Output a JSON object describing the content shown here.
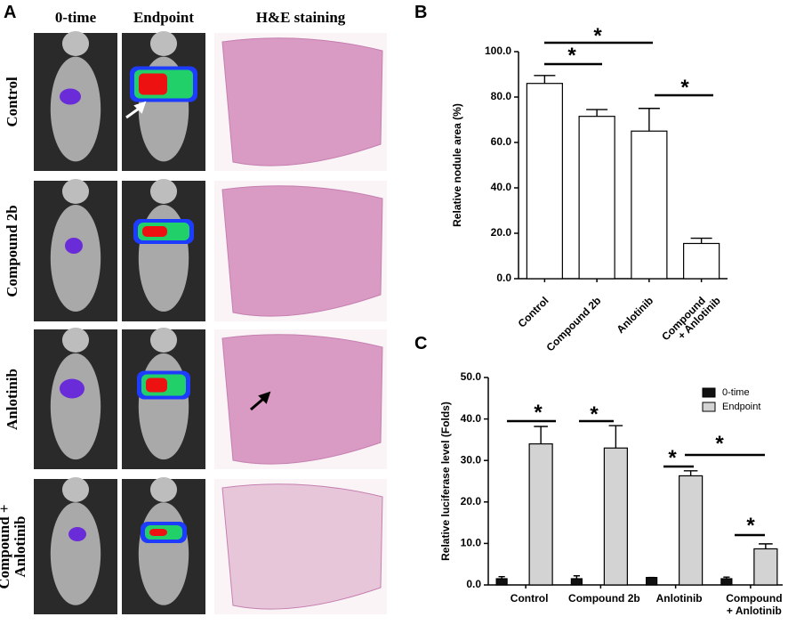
{
  "panel_a": {
    "label": "A",
    "columns": [
      "0-time",
      "Endpoint",
      "H&E staining"
    ],
    "rows": [
      [
        "Control"
      ],
      [
        "Compound 2b"
      ],
      [
        "Anlotinib"
      ],
      [
        "Compound +",
        "Anlotinib"
      ]
    ]
  },
  "chart_data": [
    {
      "type": "bar",
      "panel_label": "B",
      "y_label": "Relative nodule area (%)",
      "categories": [
        [
          "Control"
        ],
        [
          "Compound 2b"
        ],
        [
          "Anlotinib"
        ],
        [
          "Compound",
          "+ Anlotinib"
        ]
      ],
      "series": [
        {
          "color": "#ffffff",
          "values": [
            86,
            71.5,
            65,
            15.5
          ],
          "errors": [
            3.5,
            3,
            10,
            2.3
          ]
        }
      ],
      "ylim": [
        0,
        100
      ],
      "yticks": [
        {
          "value": 0,
          "label": "0.0"
        },
        {
          "value": 20,
          "label": "20.0"
        },
        {
          "value": 40,
          "label": "40.0"
        },
        {
          "value": 60,
          "label": "60.0"
        },
        {
          "value": 80,
          "label": "80.0"
        },
        {
          "value": 100,
          "label": "100.0"
        }
      ],
      "grid": false,
      "annotations": [
        "*",
        "*",
        "*"
      ]
    },
    {
      "type": "bar",
      "panel_label": "C",
      "y_label": "Relative luciferase level (Folds)",
      "categories": [
        [
          "Control"
        ],
        [
          "Compound 2b"
        ],
        [
          "Anlotinib"
        ],
        [
          "Compound",
          "+ Anlotinib"
        ]
      ],
      "series": [
        {
          "name": "0-time",
          "color": "#111111",
          "values": [
            1.5,
            1.5,
            1.8,
            1.5
          ],
          "errors": [
            0.5,
            0.7,
            0,
            0.4
          ]
        },
        {
          "name": "Endpoint",
          "color": "#d3d3d3",
          "values": [
            34,
            33,
            26.3,
            8.7
          ],
          "errors": [
            4.2,
            5.4,
            1.2,
            1.2
          ]
        }
      ],
      "ylim": [
        0,
        50
      ],
      "yticks": [
        {
          "value": 0,
          "label": "0.0"
        },
        {
          "value": 10,
          "label": "10.0"
        },
        {
          "value": 20,
          "label": "20.0"
        },
        {
          "value": 30,
          "label": "30.0"
        },
        {
          "value": 40,
          "label": "40.0"
        },
        {
          "value": 50,
          "label": "50.0"
        }
      ],
      "grid": false,
      "legend": "top-right",
      "annotations": [
        "*",
        "*",
        "*",
        "*",
        "*"
      ]
    }
  ]
}
